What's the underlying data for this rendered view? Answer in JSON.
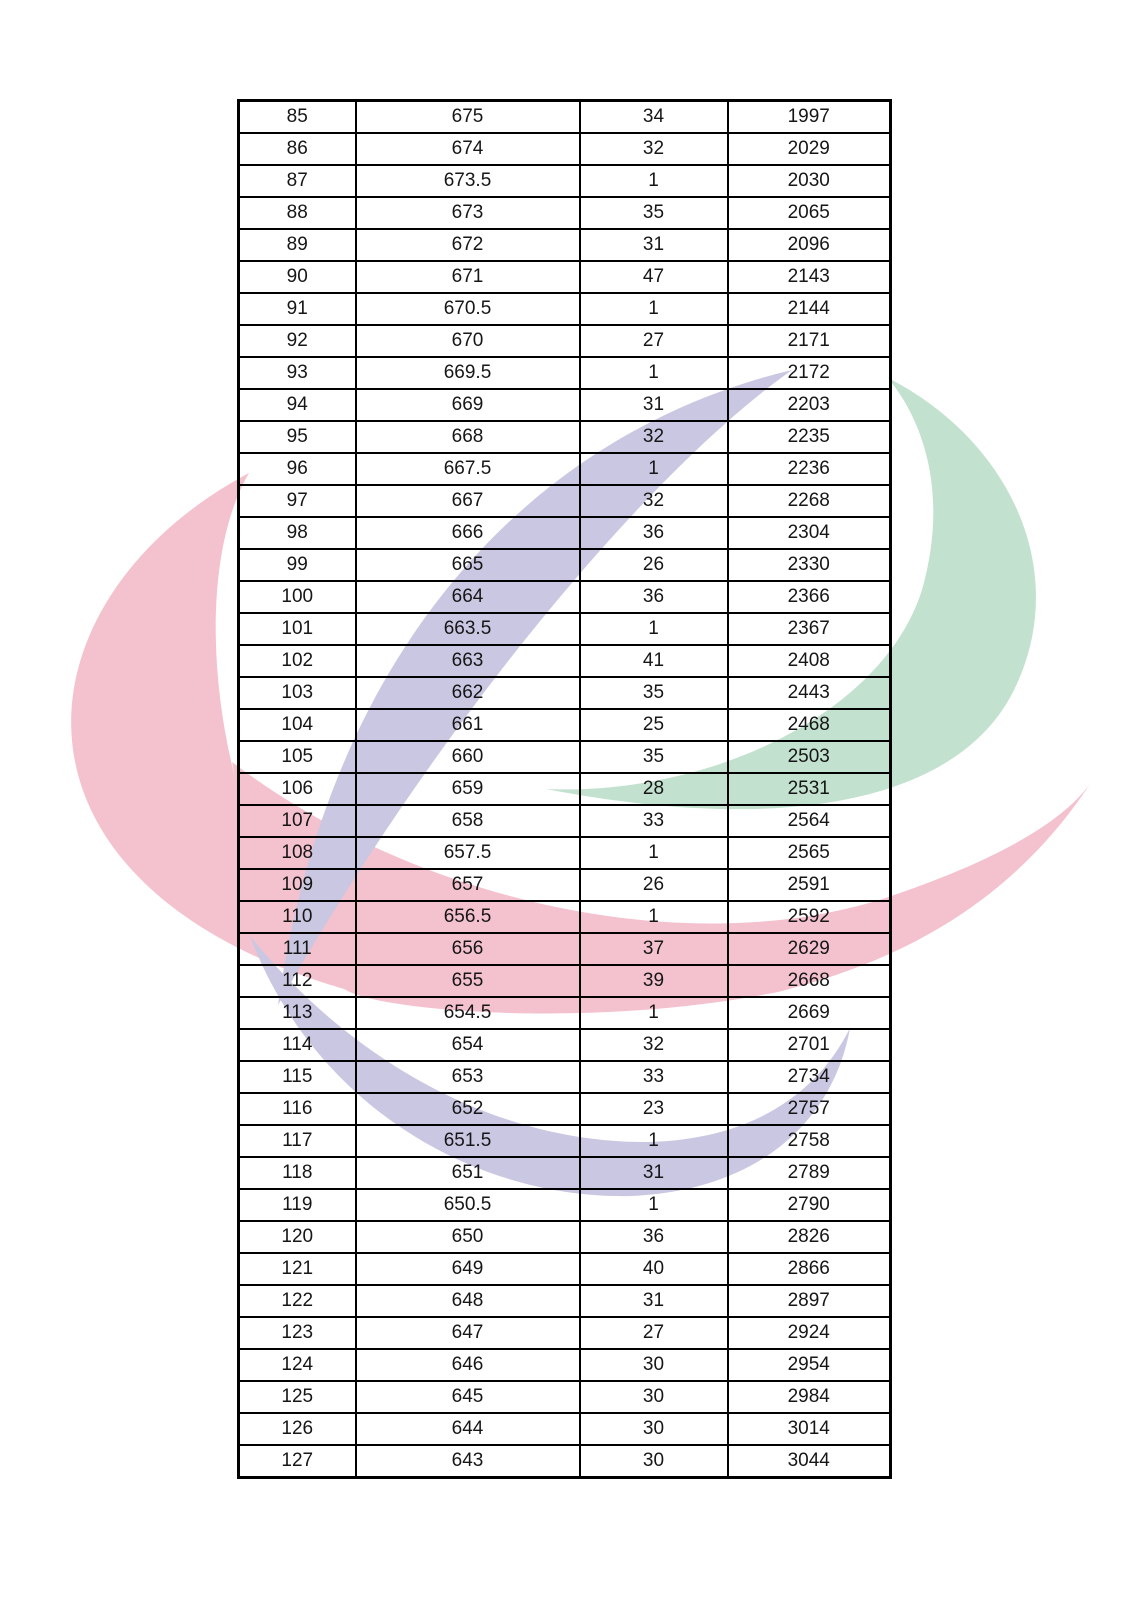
{
  "watermark": {
    "colors": {
      "pink": "#f4c1ce",
      "purple": "#c9c7e2",
      "green": "#c3e1cf"
    }
  },
  "table": {
    "rows": [
      [
        "85",
        "675",
        "34",
        "1997"
      ],
      [
        "86",
        "674",
        "32",
        "2029"
      ],
      [
        "87",
        "673.5",
        "1",
        "2030"
      ],
      [
        "88",
        "673",
        "35",
        "2065"
      ],
      [
        "89",
        "672",
        "31",
        "2096"
      ],
      [
        "90",
        "671",
        "47",
        "2143"
      ],
      [
        "91",
        "670.5",
        "1",
        "2144"
      ],
      [
        "92",
        "670",
        "27",
        "2171"
      ],
      [
        "93",
        "669.5",
        "1",
        "2172"
      ],
      [
        "94",
        "669",
        "31",
        "2203"
      ],
      [
        "95",
        "668",
        "32",
        "2235"
      ],
      [
        "96",
        "667.5",
        "1",
        "2236"
      ],
      [
        "97",
        "667",
        "32",
        "2268"
      ],
      [
        "98",
        "666",
        "36",
        "2304"
      ],
      [
        "99",
        "665",
        "26",
        "2330"
      ],
      [
        "100",
        "664",
        "36",
        "2366"
      ],
      [
        "101",
        "663.5",
        "1",
        "2367"
      ],
      [
        "102",
        "663",
        "41",
        "2408"
      ],
      [
        "103",
        "662",
        "35",
        "2443"
      ],
      [
        "104",
        "661",
        "25",
        "2468"
      ],
      [
        "105",
        "660",
        "35",
        "2503"
      ],
      [
        "106",
        "659",
        "28",
        "2531"
      ],
      [
        "107",
        "658",
        "33",
        "2564"
      ],
      [
        "108",
        "657.5",
        "1",
        "2565"
      ],
      [
        "109",
        "657",
        "26",
        "2591"
      ],
      [
        "110",
        "656.5",
        "1",
        "2592"
      ],
      [
        "111",
        "656",
        "37",
        "2629"
      ],
      [
        "112",
        "655",
        "39",
        "2668"
      ],
      [
        "113",
        "654.5",
        "1",
        "2669"
      ],
      [
        "114",
        "654",
        "32",
        "2701"
      ],
      [
        "115",
        "653",
        "33",
        "2734"
      ],
      [
        "116",
        "652",
        "23",
        "2757"
      ],
      [
        "117",
        "651.5",
        "1",
        "2758"
      ],
      [
        "118",
        "651",
        "31",
        "2789"
      ],
      [
        "119",
        "650.5",
        "1",
        "2790"
      ],
      [
        "120",
        "650",
        "36",
        "2826"
      ],
      [
        "121",
        "649",
        "40",
        "2866"
      ],
      [
        "122",
        "648",
        "31",
        "2897"
      ],
      [
        "123",
        "647",
        "27",
        "2924"
      ],
      [
        "124",
        "646",
        "30",
        "2954"
      ],
      [
        "125",
        "645",
        "30",
        "2984"
      ],
      [
        "126",
        "644",
        "30",
        "3014"
      ],
      [
        "127",
        "643",
        "30",
        "3044"
      ]
    ],
    "cell_names": [
      "cell-rank",
      "cell-score",
      "cell-count",
      "cell-cumulative"
    ]
  }
}
